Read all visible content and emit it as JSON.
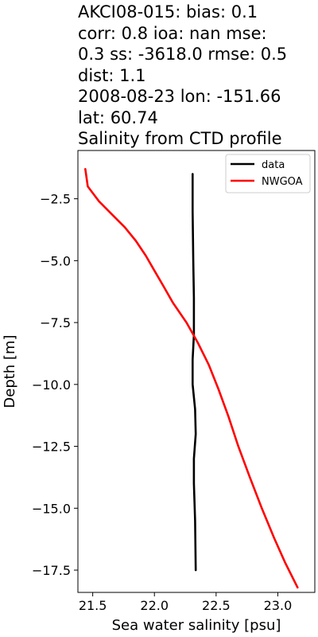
{
  "chart_data": {
    "type": "line",
    "title_lines": [
      "AKCI08-015: bias: 0.1",
      "corr: 0.8  ioa: nan  mse:",
      "0.3  ss: -3618.0  rmse: 0.5",
      "dist: 1.1",
      "2008-08-23 lon: -151.66",
      "lat: 60.74",
      "Salinity from CTD profile"
    ],
    "xlabel": "Sea water salinity [psu]",
    "ylabel": "Depth [m]",
    "xlim": [
      21.38,
      23.3
    ],
    "ylim": [
      -18.4,
      -0.55
    ],
    "xticks": [
      21.5,
      22.0,
      22.5,
      23.0
    ],
    "xtick_labels": [
      "21.5",
      "22.0",
      "22.5",
      "23.0"
    ],
    "yticks": [
      -2.5,
      -5.0,
      -7.5,
      -10.0,
      -12.5,
      -15.0,
      -17.5
    ],
    "ytick_labels": [
      "−2.5",
      "−5.0",
      "−7.5",
      "−10.0",
      "−12.5",
      "−15.0",
      "−17.5"
    ],
    "grid": false,
    "legend_position": "upper right",
    "series": [
      {
        "name": "data",
        "color": "#000000",
        "points": [
          [
            22.31,
            -1.5
          ],
          [
            22.31,
            -3.0
          ],
          [
            22.315,
            -5.0
          ],
          [
            22.32,
            -6.5
          ],
          [
            22.32,
            -8.0
          ],
          [
            22.31,
            -9.0
          ],
          [
            22.31,
            -10.0
          ],
          [
            22.33,
            -11.0
          ],
          [
            22.335,
            -12.0
          ],
          [
            22.32,
            -13.0
          ],
          [
            22.32,
            -14.0
          ],
          [
            22.33,
            -15.5
          ],
          [
            22.335,
            -17.5
          ]
        ]
      },
      {
        "name": "NWGOA",
        "color": "#ff0000",
        "points": [
          [
            21.44,
            -1.3
          ],
          [
            21.46,
            -2.0
          ],
          [
            21.55,
            -2.6
          ],
          [
            21.65,
            -3.1
          ],
          [
            21.76,
            -3.65
          ],
          [
            21.85,
            -4.2
          ],
          [
            21.93,
            -4.8
          ],
          [
            22.0,
            -5.4
          ],
          [
            22.07,
            -6.0
          ],
          [
            22.15,
            -6.7
          ],
          [
            22.26,
            -7.5
          ],
          [
            22.35,
            -8.3
          ],
          [
            22.44,
            -9.2
          ],
          [
            22.52,
            -10.2
          ],
          [
            22.6,
            -11.3
          ],
          [
            22.68,
            -12.5
          ],
          [
            22.77,
            -13.7
          ],
          [
            22.87,
            -15.0
          ],
          [
            22.97,
            -16.2
          ],
          [
            23.06,
            -17.2
          ],
          [
            23.16,
            -18.2
          ]
        ]
      }
    ]
  }
}
